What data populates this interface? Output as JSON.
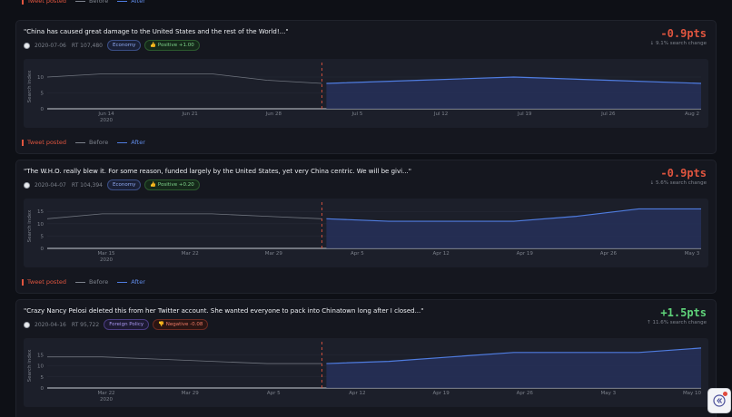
{
  "legend": {
    "posted": "Tweet posted",
    "before": "Before",
    "after": "After"
  },
  "cards": [
    {
      "tweet": "\"China has caused great damage to the United States and the rest of the World!...\"",
      "date": "2020-07-06",
      "rt": "RT 107,480",
      "tag": "Economy",
      "sentiment": "👍 Positive +1.00",
      "sentiment_kind": "positive",
      "tag_kind": "economy",
      "change": "-0.9pts",
      "change_kind": "negative",
      "change_sub": "↓ 9.1% search change",
      "chart_data": {
        "type": "line",
        "ylabel": "Search index",
        "yticks": [
          0,
          5,
          10
        ],
        "ylim": [
          0,
          14
        ],
        "xticks": [
          {
            "label": "Jun 14",
            "sub": "2020"
          },
          {
            "label": "Jun 21"
          },
          {
            "label": "Jun 28"
          },
          {
            "label": "Jul 5"
          },
          {
            "label": "Jul 12"
          },
          {
            "label": "Jul 19"
          },
          {
            "label": "Jul 26"
          },
          {
            "label": "Aug 2"
          }
        ],
        "before": [
          10,
          11,
          11,
          11,
          9,
          8
        ],
        "after": [
          8,
          9,
          10,
          9,
          8
        ],
        "posted_index": 0.42
      }
    },
    {
      "tweet": "\"The W.H.O. really blew it. For some reason, funded largely by the United States, yet very China centric. We will be givi...\"",
      "date": "2020-04-07",
      "rt": "RT 104,394",
      "tag": "Economy",
      "sentiment": "👍 Positive +0.20",
      "sentiment_kind": "positive",
      "tag_kind": "economy",
      "change": "-0.9pts",
      "change_kind": "negative",
      "change_sub": "↓ 5.6% search change",
      "chart_data": {
        "type": "line",
        "ylabel": "Search index",
        "yticks": [
          0,
          5,
          10,
          15
        ],
        "ylim": [
          0,
          18
        ],
        "xticks": [
          {
            "label": "Mar 15",
            "sub": "2020"
          },
          {
            "label": "Mar 22"
          },
          {
            "label": "Mar 29"
          },
          {
            "label": "Apr 5"
          },
          {
            "label": "Apr 12"
          },
          {
            "label": "Apr 19"
          },
          {
            "label": "Apr 26"
          },
          {
            "label": "May 3"
          }
        ],
        "before": [
          12,
          14,
          14,
          14,
          13,
          12
        ],
        "after": [
          12,
          11,
          11,
          11,
          13,
          16,
          16
        ],
        "posted_index": 0.42
      }
    },
    {
      "tweet": "\"Crazy Nancy Pelosi deleted this from her Twitter account. She wanted everyone to pack into Chinatown long after I closed...\"",
      "date": "2020-04-16",
      "rt": "RT 95,722",
      "tag": "Foreign Policy",
      "sentiment": "👎 Negative -0.08",
      "sentiment_kind": "negative",
      "tag_kind": "foreign",
      "change": "+1.5pts",
      "change_kind": "positive",
      "change_sub": "↑ 11.6% search change",
      "chart_data": {
        "type": "line",
        "ylabel": "Search index",
        "yticks": [
          0,
          5,
          10,
          15
        ],
        "ylim": [
          0,
          20
        ],
        "xticks": [
          {
            "label": "Mar 22",
            "sub": "2020"
          },
          {
            "label": "Mar 29"
          },
          {
            "label": "Apr 5"
          },
          {
            "label": "Apr 12"
          },
          {
            "label": "Apr 19"
          },
          {
            "label": "Apr 26"
          },
          {
            "label": "May 3"
          },
          {
            "label": "May 10"
          }
        ],
        "before": [
          14,
          14,
          13,
          12,
          11,
          11
        ],
        "after": [
          11,
          12,
          14,
          16,
          16,
          16,
          18
        ],
        "posted_index": 0.42
      }
    }
  ]
}
